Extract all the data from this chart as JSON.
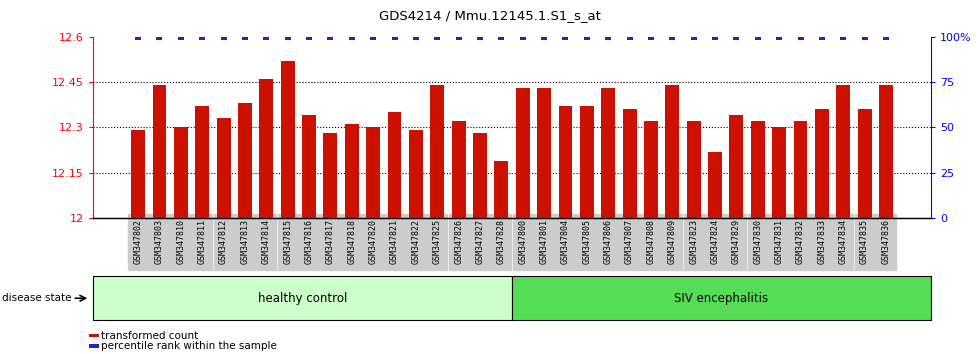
{
  "title": "GDS4214 / Mmu.12145.1.S1_s_at",
  "samples": [
    "GSM347802",
    "GSM347803",
    "GSM347810",
    "GSM347811",
    "GSM347812",
    "GSM347813",
    "GSM347814",
    "GSM347815",
    "GSM347816",
    "GSM347817",
    "GSM347818",
    "GSM347820",
    "GSM347821",
    "GSM347822",
    "GSM347825",
    "GSM347826",
    "GSM347827",
    "GSM347828",
    "GSM347800",
    "GSM347801",
    "GSM347804",
    "GSM347805",
    "GSM347806",
    "GSM347807",
    "GSM347808",
    "GSM347809",
    "GSM347823",
    "GSM347824",
    "GSM347829",
    "GSM347830",
    "GSM347831",
    "GSM347832",
    "GSM347833",
    "GSM347834",
    "GSM347835",
    "GSM347836"
  ],
  "values": [
    12.29,
    12.44,
    12.3,
    12.37,
    12.33,
    12.38,
    12.46,
    12.52,
    12.34,
    12.28,
    12.31,
    12.3,
    12.35,
    12.29,
    12.44,
    12.32,
    12.28,
    12.19,
    12.43,
    12.43,
    12.37,
    12.37,
    12.43,
    12.36,
    12.32,
    12.44,
    12.32,
    12.22,
    12.34,
    12.32,
    12.3,
    12.32,
    12.36,
    12.44,
    12.36,
    12.44
  ],
  "ymin": 12.0,
  "ymax": 12.6,
  "yticks_left": [
    12.0,
    12.15,
    12.3,
    12.45,
    12.6
  ],
  "ytick_labels_left": [
    "12",
    "12.15",
    "12.3",
    "12.45",
    "12.6"
  ],
  "yticks_right": [
    0,
    25,
    50,
    75,
    100
  ],
  "ytick_labels_right": [
    "0",
    "25",
    "50",
    "75",
    "100%"
  ],
  "bar_color": "#CC1100",
  "percentile_color": "#2222CC",
  "background_color": "#FFFFFF",
  "healthy_count": 18,
  "siv_count": 18,
  "group1_label": "healthy control",
  "group2_label": "SIV encephalitis",
  "disease_state_label": "disease state",
  "legend_bar_label": "transformed count",
  "legend_dot_label": "percentile rank within the sample",
  "group1_color": "#CCFFCC",
  "group2_color": "#55DD55",
  "xtick_bg_color": "#CCCCCC"
}
